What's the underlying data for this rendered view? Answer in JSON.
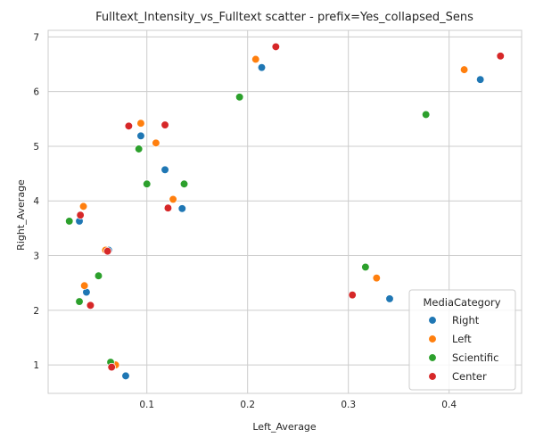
{
  "chart_data": {
    "type": "scatter",
    "title": "Fulltext_Intensity_vs_Fulltext scatter - prefix=Yes_collapsed_Sens",
    "xlabel": "Left_Average",
    "ylabel": "Right_Average",
    "xlim": [
      0.002,
      0.472
    ],
    "ylim": [
      0.48,
      7.12
    ],
    "xticks": [
      0.1,
      0.2,
      0.3,
      0.4
    ],
    "xtick_labels": [
      "0.1",
      "0.2",
      "0.3",
      "0.4"
    ],
    "yticks": [
      1,
      2,
      3,
      4,
      5,
      6,
      7
    ],
    "ytick_labels": [
      "1",
      "2",
      "3",
      "4",
      "5",
      "6",
      "7"
    ],
    "grid": true,
    "legend": {
      "title": "MediaCategory",
      "placement": "lower-right"
    },
    "series": [
      {
        "name": "Right",
        "color": "#1f77b4",
        "points": [
          {
            "x": 0.214,
            "y": 6.44
          },
          {
            "x": 0.431,
            "y": 6.22
          },
          {
            "x": 0.094,
            "y": 5.19
          },
          {
            "x": 0.118,
            "y": 4.57
          },
          {
            "x": 0.135,
            "y": 3.86
          },
          {
            "x": 0.033,
            "y": 3.63
          },
          {
            "x": 0.062,
            "y": 3.1
          },
          {
            "x": 0.04,
            "y": 2.33
          },
          {
            "x": 0.341,
            "y": 2.21
          },
          {
            "x": 0.079,
            "y": 0.8
          }
        ]
      },
      {
        "name": "Left",
        "color": "#ff7f0e",
        "points": [
          {
            "x": 0.208,
            "y": 6.59
          },
          {
            "x": 0.415,
            "y": 6.4
          },
          {
            "x": 0.094,
            "y": 5.42
          },
          {
            "x": 0.109,
            "y": 5.06
          },
          {
            "x": 0.126,
            "y": 4.03
          },
          {
            "x": 0.037,
            "y": 3.9
          },
          {
            "x": 0.059,
            "y": 3.1
          },
          {
            "x": 0.038,
            "y": 2.45
          },
          {
            "x": 0.328,
            "y": 2.59
          },
          {
            "x": 0.069,
            "y": 1.0
          }
        ]
      },
      {
        "name": "Scientific",
        "color": "#2ca02c",
        "points": [
          {
            "x": 0.192,
            "y": 5.9
          },
          {
            "x": 0.377,
            "y": 5.58
          },
          {
            "x": 0.092,
            "y": 4.95
          },
          {
            "x": 0.1,
            "y": 4.31
          },
          {
            "x": 0.137,
            "y": 4.31
          },
          {
            "x": 0.023,
            "y": 3.63
          },
          {
            "x": 0.052,
            "y": 2.63
          },
          {
            "x": 0.317,
            "y": 2.79
          },
          {
            "x": 0.033,
            "y": 2.16
          },
          {
            "x": 0.064,
            "y": 1.05
          }
        ]
      },
      {
        "name": "Center",
        "color": "#d62728",
        "points": [
          {
            "x": 0.228,
            "y": 6.82
          },
          {
            "x": 0.451,
            "y": 6.65
          },
          {
            "x": 0.082,
            "y": 5.37
          },
          {
            "x": 0.118,
            "y": 5.39
          },
          {
            "x": 0.121,
            "y": 3.87
          },
          {
            "x": 0.034,
            "y": 3.74
          },
          {
            "x": 0.061,
            "y": 3.08
          },
          {
            "x": 0.304,
            "y": 2.28
          },
          {
            "x": 0.044,
            "y": 2.09
          },
          {
            "x": 0.065,
            "y": 0.96
          }
        ]
      }
    ]
  }
}
